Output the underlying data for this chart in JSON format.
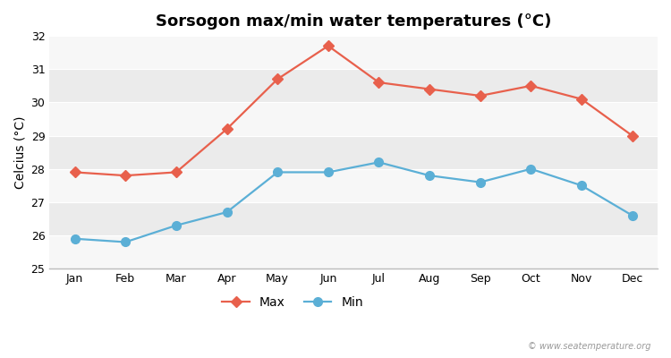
{
  "title": "Sorsogon max/min water temperatures (°C)",
  "ylabel": "Celcius (°C)",
  "months": [
    "Jan",
    "Feb",
    "Mar",
    "Apr",
    "May",
    "Jun",
    "Jul",
    "Aug",
    "Sep",
    "Oct",
    "Nov",
    "Dec"
  ],
  "max_temps": [
    27.9,
    27.8,
    27.9,
    29.2,
    30.7,
    31.7,
    30.6,
    30.4,
    30.2,
    30.5,
    30.1,
    29.0
  ],
  "min_temps": [
    25.9,
    25.8,
    26.3,
    26.7,
    27.9,
    27.9,
    28.2,
    27.8,
    27.6,
    28.0,
    27.5,
    26.6
  ],
  "max_color": "#e8604c",
  "min_color": "#5bafd6",
  "background_color": "#ffffff",
  "plot_bg_color": "#ffffff",
  "band_color_light": "#ebebeb",
  "band_color_white": "#f7f7f7",
  "ylim": [
    25,
    32
  ],
  "yticks": [
    25,
    26,
    27,
    28,
    29,
    30,
    31,
    32
  ],
  "watermark": "© www.seatemperature.org",
  "title_fontsize": 13,
  "axis_label_fontsize": 10,
  "tick_fontsize": 9,
  "legend_fontsize": 10,
  "markersize": 6,
  "linewidth": 1.6
}
